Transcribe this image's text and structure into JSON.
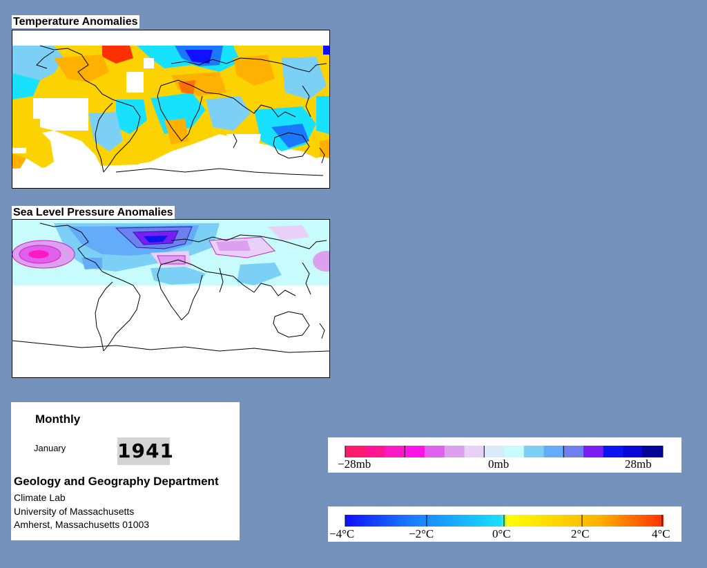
{
  "maps": [
    {
      "id": "temperature",
      "title": "Temperature Anomalies"
    },
    {
      "id": "sea_level_pressure",
      "title": "Sea Level Pressure Anomalies"
    }
  ],
  "info": {
    "period": "Monthly",
    "month": "January",
    "year": "1941",
    "department": "Geology and Geography Department",
    "address_lines": [
      "Climate Lab",
      "University of Massachusetts",
      "Amherst, Massachusetts 01003"
    ]
  },
  "legends": {
    "pressure": {
      "labels": [
        "−28mb",
        "0mb",
        "28mb"
      ],
      "colors": [
        "#ff1a6e",
        "#ff1493",
        "#ff19c5",
        "#ff14e8",
        "#e060ee",
        "#dca0ee",
        "#e8d0f8",
        "#d8ecf8",
        "#c8fcfc",
        "#7cd0f6",
        "#64acfa",
        "#6e80f0",
        "#7a1cf2",
        "#0a14f0",
        "#0606d8",
        "#04049a"
      ]
    },
    "temperature": {
      "labels": [
        "−4°C",
        "−2°C",
        "0°C",
        "2°C",
        "4°C"
      ],
      "stops": [
        "#1010ff",
        "#1a78ff",
        "#18e0ff",
        "#ffff00",
        "#ffb000",
        "#ff3000"
      ]
    }
  },
  "colors": {
    "background": "#7592bd",
    "land_outline": "#000000"
  }
}
